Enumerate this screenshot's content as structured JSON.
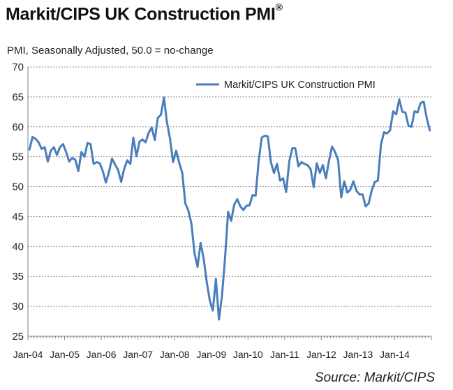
{
  "header": {
    "title": "Markit/CIPS UK Construction PMI",
    "title_mark": "®",
    "subtitle": "PMI, Seasonally Adjusted, 50.0 = no-change"
  },
  "footer": {
    "source": "Source: Markit/CIPS"
  },
  "colors": {
    "line": "#4a7ebb",
    "grid": "#8c8c8c",
    "axis": "#7f7f7f",
    "text": "#222222"
  },
  "chart_data": {
    "type": "line",
    "title": "Markit/CIPS UK Construction PMI",
    "subtitle": "PMI, Seasonally Adjusted, 50.0 = no-change",
    "ylim": [
      25,
      70
    ],
    "yticks": [
      25,
      30,
      35,
      40,
      45,
      50,
      55,
      60,
      65,
      70
    ],
    "x_tick_labels": [
      "Jan-04",
      "Jan-05",
      "Jan-06",
      "Jan-07",
      "Jan-08",
      "Jan-09",
      "Jan-10",
      "Jan-11",
      "Jan-12",
      "Jan-13",
      "Jan-14"
    ],
    "x_start": "2004-01",
    "grid": "horizontal",
    "legend_position": "top-right",
    "series": [
      {
        "name": "Markit/CIPS UK Construction PMI",
        "values": [
          56.2,
          58.3,
          58.0,
          57.4,
          56.3,
          56.6,
          54.2,
          56.0,
          56.6,
          55.3,
          56.6,
          57.1,
          55.8,
          54.2,
          54.8,
          54.5,
          52.6,
          55.8,
          55.0,
          57.3,
          57.1,
          53.8,
          54.1,
          53.9,
          52.6,
          50.7,
          52.4,
          54.7,
          53.7,
          52.8,
          50.8,
          53.0,
          54.4,
          53.8,
          58.2,
          55.1,
          57.5,
          57.9,
          57.4,
          59.0,
          59.9,
          57.8,
          61.5,
          62.0,
          64.9,
          60.7,
          58.0,
          54.1,
          56.0,
          54.0,
          52.3,
          47.2,
          46.0,
          43.8,
          38.9,
          36.6,
          40.6,
          38.0,
          34.1,
          31.0,
          29.3,
          34.6,
          27.8,
          31.8,
          38.1,
          45.8,
          44.3,
          47.0,
          47.9,
          46.7,
          46.1,
          46.8,
          46.9,
          48.6,
          48.5,
          54.3,
          58.2,
          58.5,
          58.4,
          54.1,
          52.3,
          53.8,
          51.0,
          51.4,
          49.1,
          54.2,
          56.4,
          56.4,
          53.4,
          54.1,
          53.8,
          53.6,
          52.9,
          49.9,
          53.9,
          52.3,
          53.6,
          51.4,
          54.3,
          56.7,
          55.8,
          54.4,
          48.2,
          50.9,
          49.0,
          49.5,
          50.9,
          49.3,
          48.7,
          48.7,
          46.7,
          47.2,
          49.4,
          50.8,
          51.0,
          57.0,
          59.1,
          58.9,
          59.4,
          62.6,
          62.1,
          64.6,
          62.5,
          62.4,
          60.2,
          60.0,
          62.6,
          62.4,
          64.0,
          64.2,
          61.4,
          59.4
        ]
      }
    ]
  }
}
